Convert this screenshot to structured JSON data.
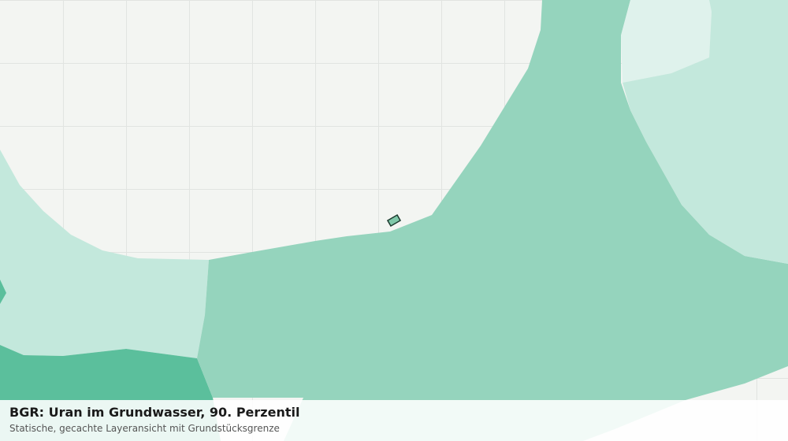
{
  "caption": {
    "title": "BGR: Uran im Grundwasser, 90. Perzentil",
    "subtitle": "Statische, gecachte Layeransicht mit Grundstücksgrenze"
  }
}
